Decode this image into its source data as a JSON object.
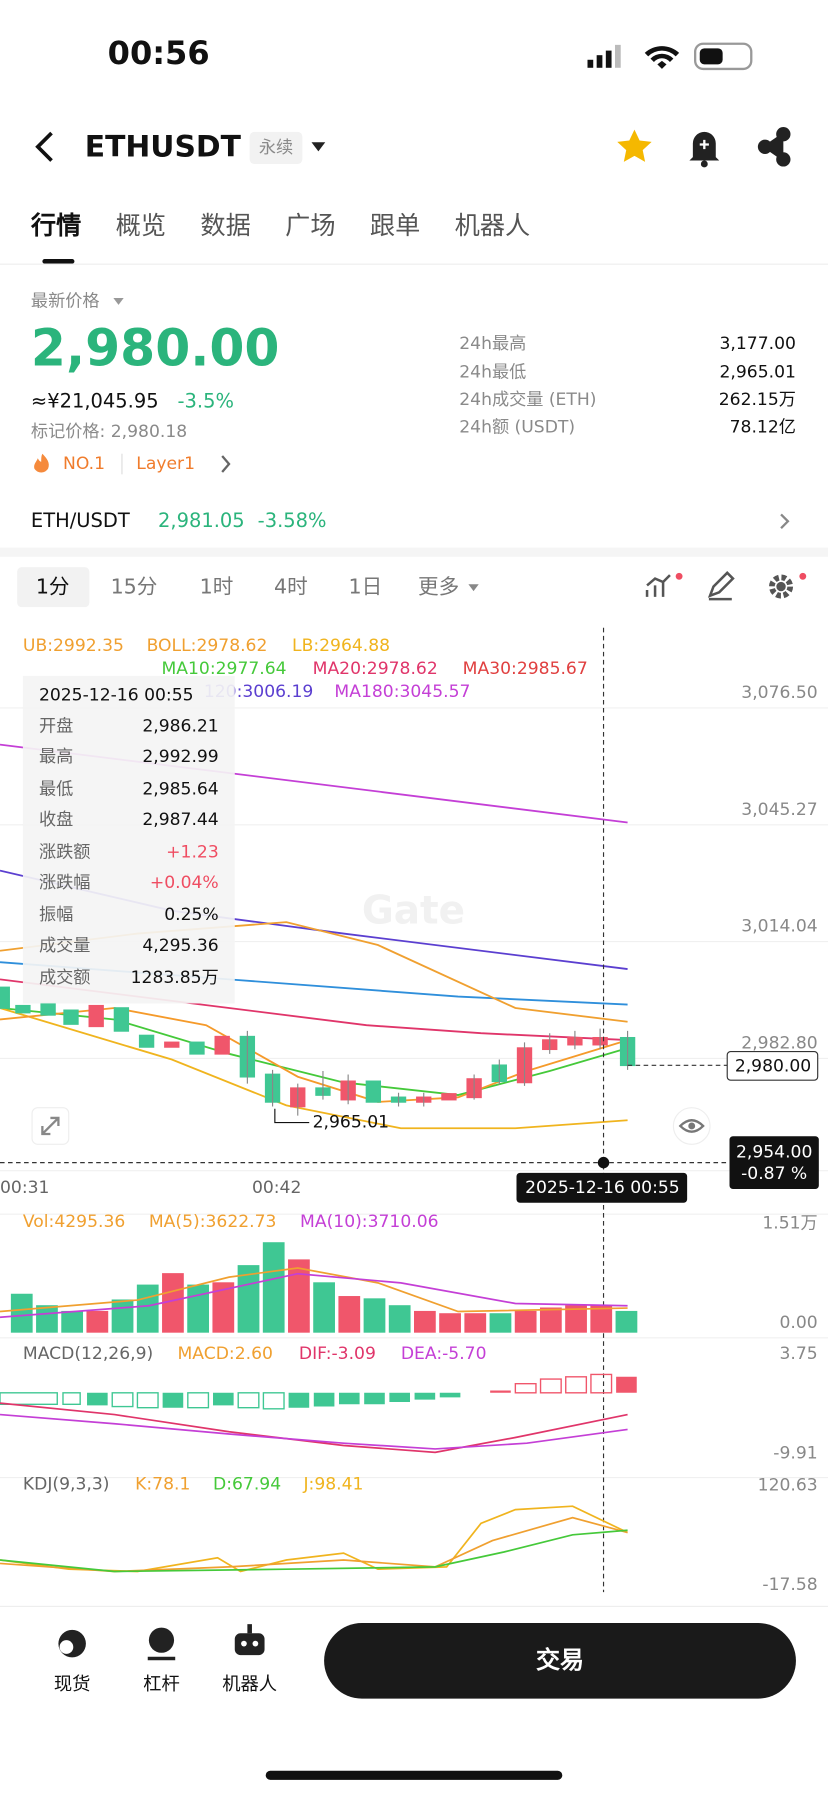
{
  "status": {
    "time": "00:56"
  },
  "header": {
    "symbol": "ETHUSDT",
    "tag": "永续"
  },
  "tabs": [
    "行情",
    "概览",
    "数据",
    "广场",
    "跟单",
    "机器人"
  ],
  "price": {
    "label": "最新价格",
    "value": "2,980.00",
    "cny": "≈¥21,045.95",
    "change": "-3.5%",
    "mark": "标记价格: 2,980.18",
    "badges": [
      "NO.1",
      "Layer1"
    ]
  },
  "stats": [
    {
      "label": "24h最高",
      "value": "3,177.00"
    },
    {
      "label": "24h最低",
      "value": "2,965.01"
    },
    {
      "label": "24h成交量 (ETH)",
      "value": "262.15万"
    },
    {
      "label": "24h额 (USDT)",
      "value": "78.12亿"
    }
  ],
  "pair": {
    "name": "ETH/USDT",
    "price": "2,981.05",
    "change": "-3.58%"
  },
  "intervals": [
    "1分",
    "15分",
    "1时",
    "4时",
    "1日",
    "更多"
  ],
  "chart": {
    "boll": [
      "UB:2992.35",
      "BOLL:2978.62",
      "LB:2964.88"
    ],
    "ma": [
      "MA10:2977.64",
      "MA20:2978.62",
      "MA30:2985.67"
    ],
    "ma_long": [
      "120:3006.19",
      "MA180:3045.57"
    ],
    "tooltip": {
      "date": "2025-12-16 00:55",
      "rows": [
        {
          "label": "开盘",
          "value": "2,986.21"
        },
        {
          "label": "最高",
          "value": "2,992.99"
        },
        {
          "label": "最低",
          "value": "2,985.64"
        },
        {
          "label": "收盘",
          "value": "2,987.44"
        },
        {
          "label": "涨跌额",
          "value": "+1.23"
        },
        {
          "label": "涨跌幅",
          "value": "+0.04%"
        },
        {
          "label": "振幅",
          "value": "0.25%"
        },
        {
          "label": "成交量",
          "value": "4,295.36"
        },
        {
          "label": "成交额",
          "value": "1283.85万"
        }
      ]
    },
    "price_axis": [
      "3,076.50",
      "3,045.27",
      "3,014.04",
      "2,982.80"
    ],
    "current_price": "2,980.00",
    "cursor_price": "2,954.00",
    "cursor_change": "-0.87 %",
    "low_label": "2,965.01",
    "time_axis": [
      "00:31",
      "00:42"
    ],
    "cursor_time": "2025-12-16 00:55",
    "volume": {
      "labels": [
        "Vol:4295.36",
        "MA(5):3622.73",
        "MA(10):3710.06"
      ],
      "axis": [
        "1.51万",
        "0.00"
      ]
    },
    "macd": {
      "labels": [
        "MACD(12,26,9)",
        "MACD:2.60",
        "DIF:-3.09",
        "DEA:-5.70"
      ],
      "axis": [
        "3.75",
        "-9.91"
      ]
    },
    "kdj": {
      "labels": [
        "KDJ(9,3,3)",
        "K:78.1",
        "D:67.94",
        "J:98.41"
      ],
      "axis": [
        "120.63",
        "-17.58"
      ]
    }
  },
  "nav": {
    "items": [
      "现货",
      "杠杆",
      "机器人"
    ],
    "button": "交易"
  }
}
